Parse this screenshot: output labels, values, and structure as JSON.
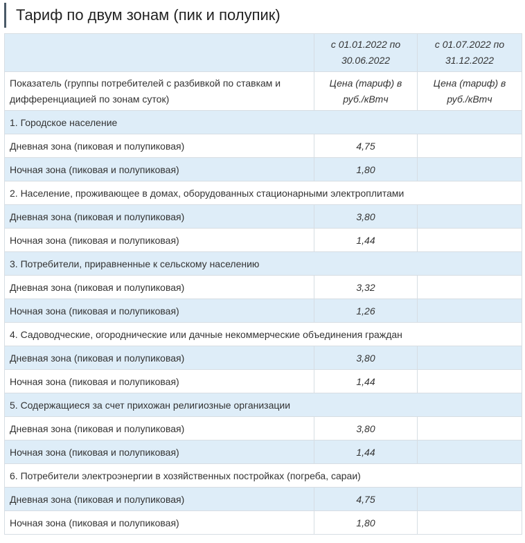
{
  "title": "Тариф по двум зонам (пик и полупик)",
  "colors": {
    "stripe": "#deedf8",
    "border": "#d6dde3",
    "title_bar": "#4a5a68"
  },
  "header": {
    "period1": "с 01.01.2022 по 30.06.2022",
    "period2": "с 01.07.2022 по 31.12.2022"
  },
  "column_header": {
    "indicator": "Показатель (группы потребителей с разбивкой по ставкам и дифференциацией по зонам суток)",
    "price1": "Цена (тариф) в руб./кВтч",
    "price2": "Цена (тариф) в руб./кВтч"
  },
  "groups": [
    {
      "name": "1. Городское население",
      "rows": [
        {
          "label": "Дневная зона (пиковая и полупиковая)",
          "p1": "4,75",
          "p2": ""
        },
        {
          "label": "Ночная зона (пиковая и полупиковая)",
          "p1": "1,80",
          "p2": ""
        }
      ]
    },
    {
      "name": "2. Население, проживающее в домах, оборудованных стационарными электроплитами",
      "rows": [
        {
          "label": "Дневная зона (пиковая и полупиковая)",
          "p1": "3,80",
          "p2": ""
        },
        {
          "label": "Ночная зона (пиковая и полупиковая)",
          "p1": "1,44",
          "p2": ""
        }
      ]
    },
    {
      "name": "3. Потребители, приравненные к сельскому населению",
      "rows": [
        {
          "label": "Дневная зона (пиковая и полупиковая)",
          "p1": "3,32",
          "p2": ""
        },
        {
          "label": "Ночная зона (пиковая и полупиковая)",
          "p1": "1,26",
          "p2": ""
        }
      ]
    },
    {
      "name": "4. Садоводческие, огороднические или дачные некоммерческие объединения граждан",
      "rows": [
        {
          "label": "Дневная зона (пиковая и полупиковая)",
          "p1": "3,80",
          "p2": ""
        },
        {
          "label": "Ночная зона (пиковая и полупиковая)",
          "p1": "1,44",
          "p2": ""
        }
      ]
    },
    {
      "name": "5. Содержащиеся за счет прихожан религиозные организации",
      "rows": [
        {
          "label": "Дневная зона (пиковая и полупиковая)",
          "p1": "3,80",
          "p2": ""
        },
        {
          "label": "Ночная зона (пиковая и полупиковая)",
          "p1": "1,44",
          "p2": ""
        }
      ]
    },
    {
      "name": "6. Потребители электроэнергии в хозяйственных постройках (погреба, сараи)",
      "rows": [
        {
          "label": "Дневная зона (пиковая и полупиковая)",
          "p1": "4,75",
          "p2": ""
        },
        {
          "label": "Ночная зона (пиковая и полупиковая)",
          "p1": "1,80",
          "p2": ""
        }
      ]
    }
  ]
}
